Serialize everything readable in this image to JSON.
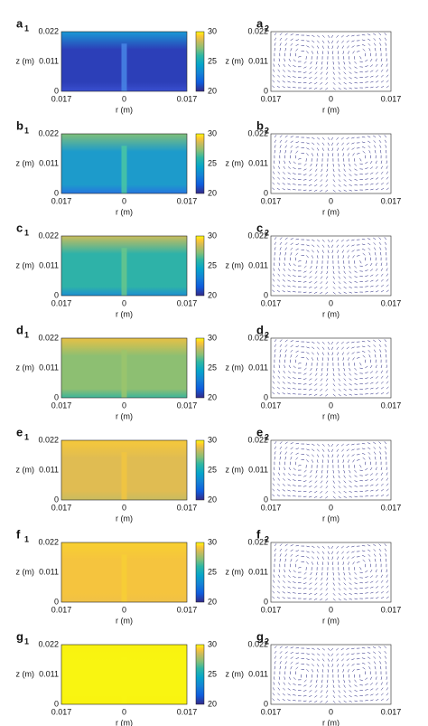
{
  "axes": {
    "xlabel": "r (m)",
    "ylabel": "z (m)",
    "xticks": [
      "0.017",
      "0",
      "0.017"
    ],
    "yticks": [
      "0",
      "0.011",
      "0.022"
    ]
  },
  "colorbar": {
    "ticks": [
      20,
      25,
      30
    ]
  },
  "panels": [
    {
      "letter": "a",
      "left_index": "1",
      "right_index": "2"
    },
    {
      "letter": "b",
      "left_index": "1",
      "right_index": "2"
    },
    {
      "letter": "c",
      "left_index": "1",
      "right_index": "2"
    },
    {
      "letter": "d",
      "left_index": "1",
      "right_index": "2"
    },
    {
      "letter": "e",
      "left_index": "1",
      "right_index": "2"
    },
    {
      "letter": "f",
      "left_index": "1",
      "right_index": "2"
    },
    {
      "letter": "g",
      "left_index": "1",
      "right_index": "2"
    }
  ]
}
